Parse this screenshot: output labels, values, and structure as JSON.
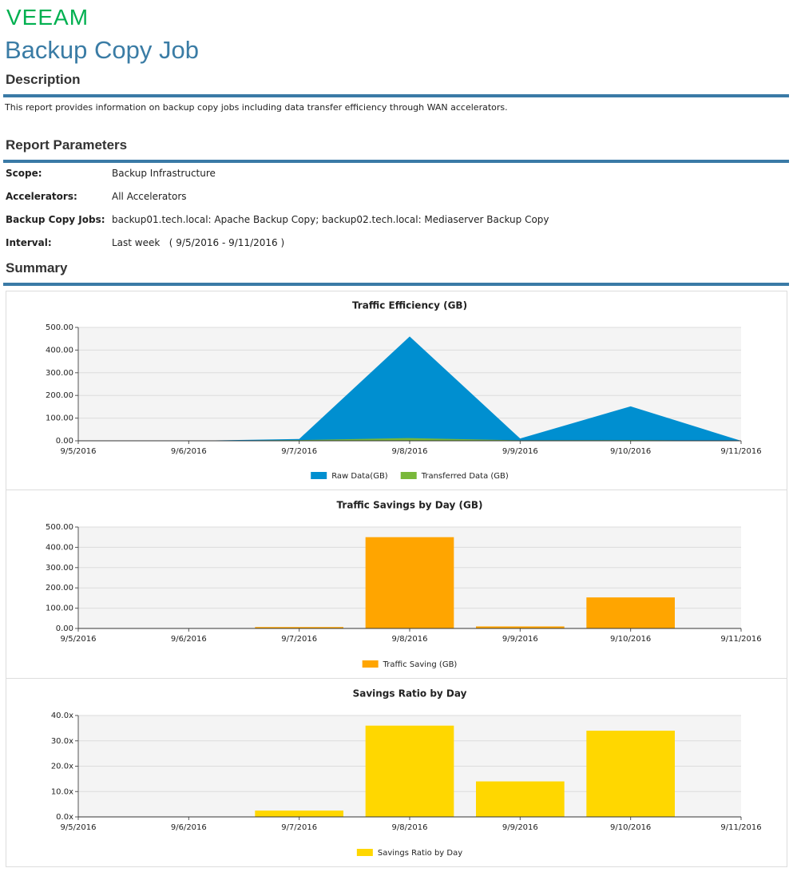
{
  "logo": "VEEAM",
  "title": "Backup Copy Job",
  "description": {
    "heading": "Description",
    "text": "This report provides information on backup copy jobs including data transfer efficiency through WAN accelerators."
  },
  "parameters": {
    "heading": "Report Parameters",
    "rows": [
      [
        "Scope:",
        "Backup Infrastructure"
      ],
      [
        "Accelerators:",
        "All Accelerators"
      ],
      [
        "Backup Copy Jobs:",
        "backup01.tech.local: Apache Backup Copy; backup02.tech.local: Mediaserver Backup Copy"
      ],
      [
        "Interval:",
        "Last week   ( 9/5/2016 - 9/11/2016 )"
      ]
    ]
  },
  "summary": {
    "heading": "Summary"
  },
  "chart_data": [
    {
      "type": "area",
      "title": "Traffic Efficiency (GB)",
      "categories": [
        "9/5/2016",
        "9/6/2016",
        "9/7/2016",
        "9/8/2016",
        "9/9/2016",
        "9/10/2016",
        "9/11/2016"
      ],
      "series": [
        {
          "name": "Raw Data(GB)",
          "color": "#008fd0",
          "values": [
            0,
            0,
            8,
            460,
            10,
            152,
            0
          ]
        },
        {
          "name": "Transferred Data (GB)",
          "color": "#79b83a",
          "values": [
            0,
            0,
            3,
            12,
            2,
            3,
            0
          ]
        }
      ],
      "ylim": [
        0,
        500
      ],
      "yticks": [
        {
          "value": 0,
          "label": "0.00"
        },
        {
          "value": 100,
          "label": "100.00"
        },
        {
          "value": 200,
          "label": "200.00"
        },
        {
          "value": 300,
          "label": "300.00"
        },
        {
          "value": 400,
          "label": "400.00"
        },
        {
          "value": 500,
          "label": "500.00"
        }
      ],
      "grid": true
    },
    {
      "type": "bar",
      "title": "Traffic Savings by Day (GB)",
      "categories": [
        "9/5/2016",
        "9/6/2016",
        "9/7/2016",
        "9/8/2016",
        "9/9/2016",
        "9/10/2016",
        "9/11/2016"
      ],
      "series": [
        {
          "name": "Traffic Saving (GB)",
          "color": "#ffa500",
          "values": [
            0,
            0,
            7,
            450,
            10,
            153,
            0
          ]
        }
      ],
      "ylim": [
        0,
        500
      ],
      "yticks": [
        {
          "value": 0,
          "label": "0.00"
        },
        {
          "value": 100,
          "label": "100.00"
        },
        {
          "value": 200,
          "label": "200.00"
        },
        {
          "value": 300,
          "label": "300.00"
        },
        {
          "value": 400,
          "label": "400.00"
        },
        {
          "value": 500,
          "label": "500.00"
        }
      ],
      "grid": true
    },
    {
      "type": "bar",
      "title": "Savings Ratio by Day",
      "categories": [
        "9/5/2016",
        "9/6/2016",
        "9/7/2016",
        "9/8/2016",
        "9/9/2016",
        "9/10/2016",
        "9/11/2016"
      ],
      "series": [
        {
          "name": "Savings Ratio by Day",
          "color": "#ffd700",
          "values": [
            0,
            0,
            2.5,
            36,
            14,
            34,
            0
          ]
        }
      ],
      "ylim": [
        0,
        40
      ],
      "yticks": [
        {
          "value": 0,
          "label": "0.0x"
        },
        {
          "value": 10,
          "label": "10.0x"
        },
        {
          "value": 20,
          "label": "20.0x"
        },
        {
          "value": 30,
          "label": "30.0x"
        },
        {
          "value": 40,
          "label": "40.0x"
        }
      ],
      "grid": true
    }
  ]
}
